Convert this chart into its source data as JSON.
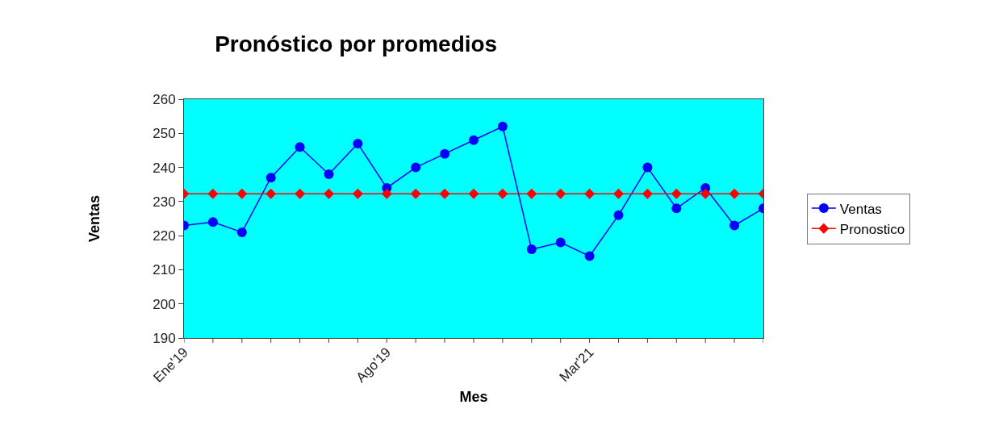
{
  "chart_data": {
    "type": "line",
    "title": "Pronóstico por promedios",
    "xlabel": "Mes",
    "ylabel": "Ventas",
    "categories": [
      "Ene'19",
      null,
      null,
      null,
      null,
      null,
      null,
      "Ago'19",
      null,
      null,
      null,
      null,
      null,
      null,
      "Mar'21",
      null,
      null,
      null,
      null,
      null,
      null
    ],
    "series": [
      {
        "name": "Ventas",
        "color": "#0000ff",
        "marker": "circle",
        "values": [
          223,
          224,
          221,
          237,
          246,
          238,
          247,
          234,
          240,
          244,
          248,
          252,
          216,
          218,
          214,
          226,
          240,
          228,
          234,
          223,
          228
        ]
      },
      {
        "name": "Pronostico",
        "color": "#ff0000",
        "marker": "diamond",
        "values": [
          232.3,
          232.3,
          232.3,
          232.3,
          232.3,
          232.3,
          232.3,
          232.3,
          232.3,
          232.3,
          232.3,
          232.3,
          232.3,
          232.3,
          232.3,
          232.3,
          232.3,
          232.3,
          232.3,
          232.3,
          232.3
        ]
      }
    ],
    "ylim": [
      190,
      260
    ],
    "yticks": [
      190,
      200,
      210,
      220,
      230,
      240,
      250,
      260
    ],
    "grid": false,
    "legend": "right",
    "line_style": "solid"
  }
}
